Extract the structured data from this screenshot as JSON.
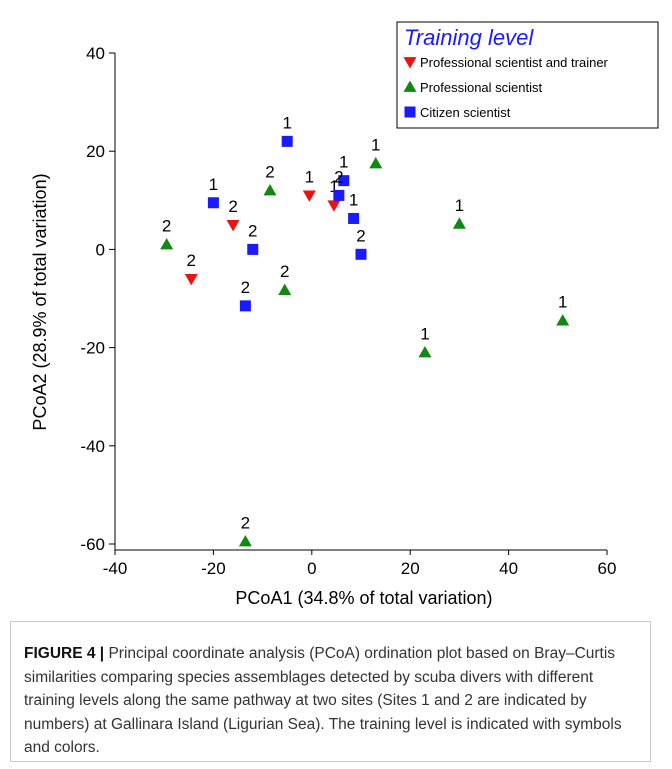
{
  "chart_data": {
    "type": "scatter",
    "title": "",
    "xlabel": "PCoA1 (34.8% of total variation)",
    "ylabel": "PCoA2 (28.9% of total variation)",
    "xlim": [
      -40,
      60
    ],
    "ylim": [
      -60,
      40
    ],
    "xticks": [
      -40,
      -20,
      0,
      20,
      40,
      60
    ],
    "yticks": [
      -60,
      -40,
      -20,
      0,
      20,
      40
    ],
    "grid": false,
    "legend": {
      "title": "Training level",
      "placement": "top-right",
      "entries": [
        {
          "name": "Professional scientist and trainer",
          "marker": "triangle-down",
          "color": "#ee1111"
        },
        {
          "name": "Professional scientist",
          "marker": "triangle-up",
          "color": "#118811"
        },
        {
          "name": "Citizen scientist",
          "marker": "square",
          "color": "#1a1aff"
        }
      ]
    },
    "series": [
      {
        "name": "Professional scientist and trainer",
        "marker": "triangle-down",
        "color": "#ee1111",
        "points": [
          {
            "x": -0.5,
            "y": 11,
            "label": "1"
          },
          {
            "x": 4.5,
            "y": 9,
            "label": "1"
          },
          {
            "x": -16,
            "y": 5,
            "label": "2"
          },
          {
            "x": -24.5,
            "y": -6,
            "label": "2"
          }
        ]
      },
      {
        "name": "Professional scientist",
        "marker": "triangle-up",
        "color": "#118811",
        "points": [
          {
            "x": 13,
            "y": 17.5,
            "label": "1"
          },
          {
            "x": 30,
            "y": 5.2,
            "label": "1"
          },
          {
            "x": 51,
            "y": -14.5,
            "label": "1"
          },
          {
            "x": 23,
            "y": -21,
            "label": "1"
          },
          {
            "x": -8.5,
            "y": 12,
            "label": "2"
          },
          {
            "x": -29.5,
            "y": 1,
            "label": "2"
          },
          {
            "x": -5.5,
            "y": -8.3,
            "label": "2"
          },
          {
            "x": -13.5,
            "y": -59.5,
            "label": "2"
          }
        ]
      },
      {
        "name": "Citizen scientist",
        "marker": "square",
        "color": "#1a1aff",
        "points": [
          {
            "x": -5,
            "y": 22,
            "label": "1"
          },
          {
            "x": -20,
            "y": 9.5,
            "label": "1"
          },
          {
            "x": 6.5,
            "y": 14,
            "label": "1"
          },
          {
            "x": 5.5,
            "y": 11,
            "label": "2"
          },
          {
            "x": 8.5,
            "y": 6.3,
            "label": "1"
          },
          {
            "x": 10,
            "y": -1,
            "label": "2"
          },
          {
            "x": -12,
            "y": 0,
            "label": "2"
          },
          {
            "x": -13.5,
            "y": -11.5,
            "label": "2"
          }
        ]
      }
    ]
  },
  "caption": {
    "label": "FIGURE 4 |",
    "text": " Principal coordinate analysis (PCoA) ordination plot based on Bray–Curtis similarities comparing species assemblages detected by scuba divers with different training levels along the same pathway at two sites (Sites 1 and 2 are indicated by numbers) at Gallinara Island (Ligurian Sea). The training level is indicated with symbols and colors."
  }
}
